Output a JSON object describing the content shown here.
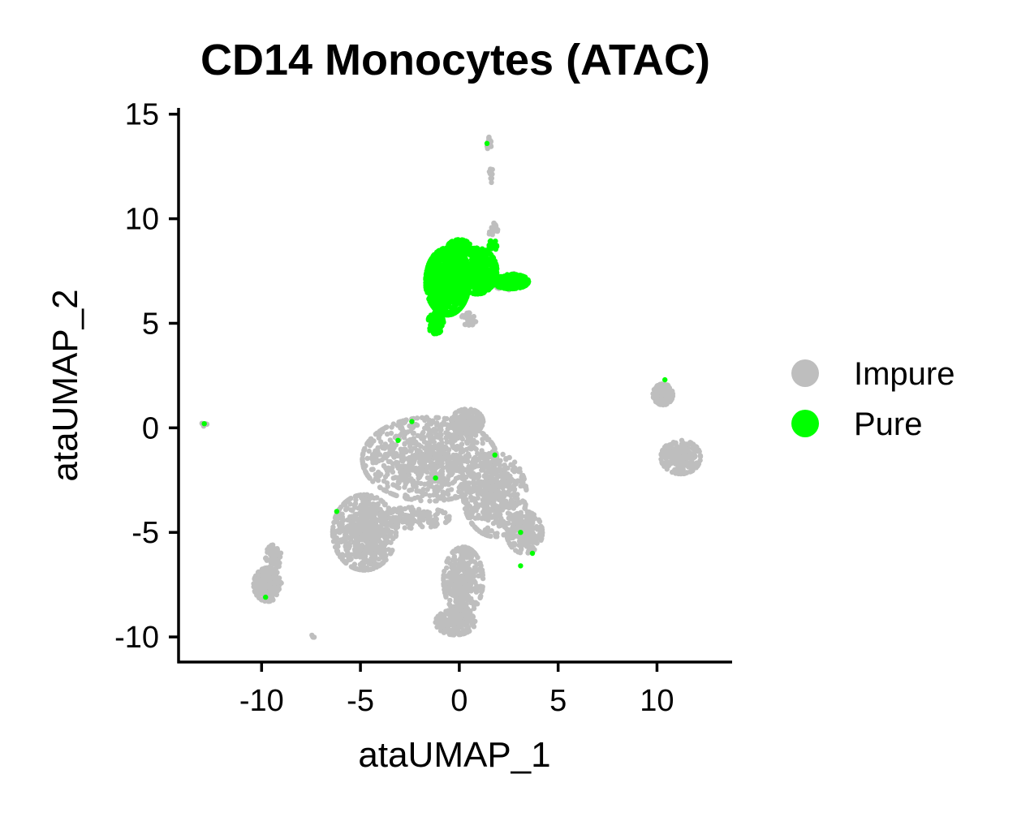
{
  "chart_data": {
    "type": "scatter",
    "title": "CD14 Monocytes (ATAC)",
    "xlabel": "ataUMAP_1",
    "ylabel": "ataUMAP_2",
    "xlim": [
      -14.2,
      13.8
    ],
    "ylim": [
      -11.2,
      15.3
    ],
    "xticks": [
      -10,
      -5,
      0,
      5,
      10
    ],
    "yticks": [
      -10,
      -5,
      0,
      5,
      10,
      15
    ],
    "xtick_labels": [
      "-10",
      "-5",
      "0",
      "5",
      "10"
    ],
    "ytick_labels": [
      "-10",
      "-5",
      "0",
      "5",
      "10",
      "15"
    ],
    "grid": false,
    "legend_position": "right",
    "series": [
      {
        "name": "Impure",
        "color": "#bebebe",
        "points_shown": "gray UMAP cells, approximated as clusters",
        "clusters": [
          {
            "cx": -1.5,
            "cy": -1.5,
            "rx": 3.4,
            "ry": 2.0,
            "n": 900
          },
          {
            "cx": -4.8,
            "cy": -5.0,
            "rx": 1.6,
            "ry": 1.8,
            "n": 600
          },
          {
            "cx": 0.4,
            "cy": 0.3,
            "rx": 0.8,
            "ry": 0.6,
            "n": 200
          },
          {
            "cx": 1.8,
            "cy": -3.2,
            "rx": 1.6,
            "ry": 2.0,
            "n": 500
          },
          {
            "cx": 3.3,
            "cy": -5.0,
            "rx": 0.9,
            "ry": 1.0,
            "n": 200
          },
          {
            "cx": 0.2,
            "cy": -7.3,
            "rx": 1.0,
            "ry": 1.6,
            "n": 350
          },
          {
            "cx": -0.2,
            "cy": -9.3,
            "rx": 1.0,
            "ry": 0.6,
            "n": 200
          },
          {
            "cx": -9.7,
            "cy": -7.5,
            "rx": 0.7,
            "ry": 0.8,
            "n": 200
          },
          {
            "cx": -9.4,
            "cy": -6.2,
            "rx": 0.4,
            "ry": 0.6,
            "n": 60
          },
          {
            "cx": 10.3,
            "cy": 1.6,
            "rx": 0.5,
            "ry": 0.5,
            "n": 120
          },
          {
            "cx": 11.2,
            "cy": -1.4,
            "rx": 1.0,
            "ry": 0.8,
            "n": 220
          },
          {
            "cx": 1.5,
            "cy": 13.6,
            "rx": 0.12,
            "ry": 0.3,
            "n": 14
          },
          {
            "cx": 1.6,
            "cy": 12.2,
            "rx": 0.08,
            "ry": 0.5,
            "n": 12
          },
          {
            "cx": 1.8,
            "cy": 9.4,
            "rx": 0.3,
            "ry": 0.4,
            "n": 18
          },
          {
            "cx": -12.9,
            "cy": 0.2,
            "rx": 0.15,
            "ry": 0.12,
            "n": 6
          },
          {
            "cx": -7.4,
            "cy": -10.0,
            "rx": 0.1,
            "ry": 0.1,
            "n": 5
          },
          {
            "cx": -2.3,
            "cy": -4.3,
            "rx": 1.8,
            "ry": 0.5,
            "n": 150
          },
          {
            "cx": 0.5,
            "cy": 5.2,
            "rx": 0.4,
            "ry": 0.3,
            "n": 30
          },
          {
            "cx": 2.5,
            "cy": 7.0,
            "rx": 0.9,
            "ry": 0.4,
            "n": 40
          }
        ]
      },
      {
        "name": "Pure",
        "color": "#00ff00",
        "points_shown": "green UMAP cells, approximated as clusters",
        "clusters": [
          {
            "cx": -0.6,
            "cy": 7.0,
            "rx": 1.1,
            "ry": 1.6,
            "n": 900
          },
          {
            "cx": 0.9,
            "cy": 7.5,
            "rx": 1.0,
            "ry": 1.1,
            "n": 600
          },
          {
            "cx": 2.6,
            "cy": 7.0,
            "rx": 0.9,
            "ry": 0.35,
            "n": 250
          },
          {
            "cx": -1.2,
            "cy": 5.0,
            "rx": 0.4,
            "ry": 0.5,
            "n": 100
          },
          {
            "cx": 0.0,
            "cy": 8.6,
            "rx": 0.6,
            "ry": 0.4,
            "n": 150
          },
          {
            "cx": 1.7,
            "cy": 8.7,
            "rx": 0.2,
            "ry": 0.3,
            "n": 25
          }
        ],
        "scattered_points": [
          [
            1.4,
            13.6
          ],
          [
            10.4,
            2.3
          ],
          [
            -2.4,
            0.3
          ],
          [
            -3.1,
            -0.6
          ],
          [
            -1.2,
            -2.4
          ],
          [
            1.8,
            -1.3
          ],
          [
            3.1,
            -5.0
          ],
          [
            3.7,
            -6.0
          ],
          [
            3.1,
            -6.6
          ],
          [
            -6.2,
            -4.0
          ],
          [
            -9.8,
            -8.1
          ],
          [
            -12.9,
            0.2
          ]
        ]
      }
    ]
  }
}
